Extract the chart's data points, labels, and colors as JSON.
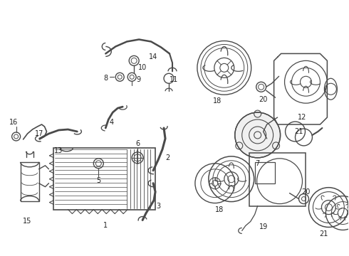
{
  "bg_color": "#ffffff",
  "line_color": "#4a4a4a",
  "label_color": "#222222",
  "fig_width": 4.9,
  "fig_height": 3.6,
  "dpi": 100
}
